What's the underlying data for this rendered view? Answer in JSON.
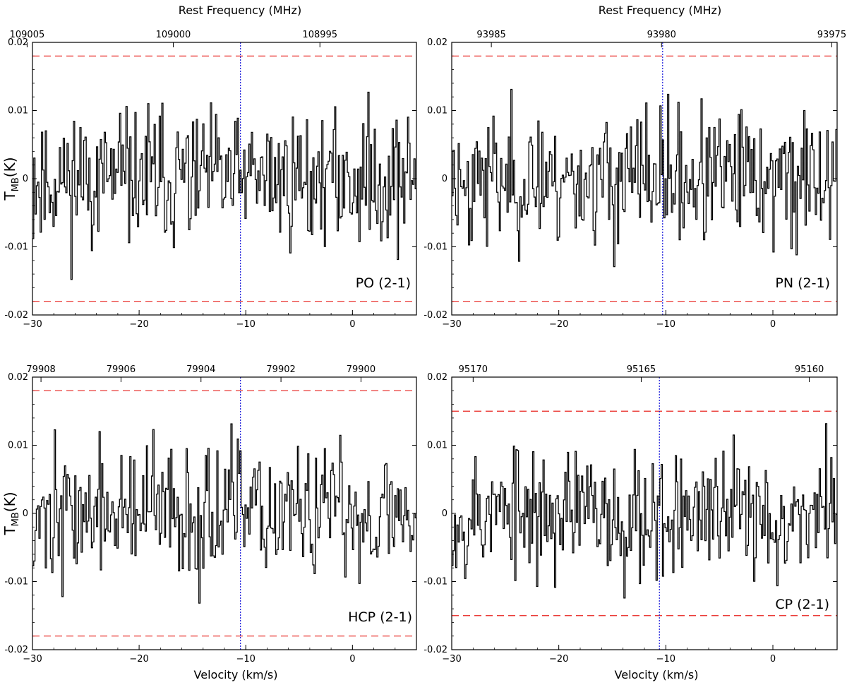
{
  "figure": {
    "xlabel": "Velocity (km/s)",
    "ylabel_main": "T",
    "ylabel_sub": "MB",
    "ylabel_unit": "(K)",
    "top_axis_label": "Rest Frequency (MHz)"
  },
  "colors": {
    "spectrum": "#000000",
    "noise_level": "#e8201c",
    "vlsr_marker": "#1a1adb",
    "frame": "#000000"
  },
  "chart_data": [
    {
      "type": "line",
      "label": "PO (2-1)",
      "xlim": [
        -30,
        6
      ],
      "ylim": [
        -0.02,
        0.02
      ],
      "yticks": [
        -0.02,
        -0.01,
        0,
        0.01,
        0.02
      ],
      "ytick_labels": [
        "-0.02",
        "-0.01",
        "0",
        "0.01",
        "0.02"
      ],
      "xticks": [
        -30,
        -20,
        -10,
        0
      ],
      "xtick_labels": [
        "−30",
        "−20",
        "−10",
        "0"
      ],
      "top_axis_label": "Rest Frequency (MHz)",
      "top_ticks": [
        {
          "v": -30.5,
          "label": "109005"
        },
        {
          "v": -16.8,
          "label": "109000"
        },
        {
          "v": -3.05,
          "label": "108995"
        }
      ],
      "noise_level": 0.018,
      "vlsr": -10.5,
      "seed": 11
    },
    {
      "type": "line",
      "label": "PN (2-1)",
      "xlim": [
        -30,
        6
      ],
      "ylim": [
        -0.02,
        0.02
      ],
      "yticks": [
        -0.02,
        -0.01,
        0,
        0.01,
        0.02
      ],
      "ytick_labels": [
        "-0.02",
        "-0.01",
        "0",
        "0.01",
        "0.02"
      ],
      "xticks": [
        -30,
        -20,
        -10,
        0
      ],
      "xtick_labels": [
        "−30",
        "−20",
        "−10",
        "0"
      ],
      "top_axis_label": "Rest Frequency (MHz)",
      "top_ticks": [
        {
          "v": -26.3,
          "label": "93985"
        },
        {
          "v": -10.4,
          "label": "93980"
        },
        {
          "v": 5.5,
          "label": "93975"
        }
      ],
      "noise_level": 0.018,
      "vlsr": -10.3,
      "seed": 23
    },
    {
      "type": "line",
      "label": "HCP (2-1)",
      "xlim": [
        -30,
        6
      ],
      "ylim": [
        -0.02,
        0.02
      ],
      "yticks": [
        -0.02,
        -0.01,
        0,
        0.01,
        0.02
      ],
      "ytick_labels": [
        "-0.02",
        "-0.01",
        "0",
        "0.01",
        "0.02"
      ],
      "xticks": [
        -30,
        -20,
        -10,
        0
      ],
      "xtick_labels": [
        "−30",
        "−20",
        "−10",
        "0"
      ],
      "top_axis_label": "",
      "top_ticks": [
        {
          "v": -29.2,
          "label": "79908"
        },
        {
          "v": -21.7,
          "label": "79906"
        },
        {
          "v": -14.2,
          "label": "79904"
        },
        {
          "v": -6.7,
          "label": "79902"
        },
        {
          "v": 0.8,
          "label": "79900"
        }
      ],
      "noise_level": 0.018,
      "vlsr": -10.5,
      "seed": 37
    },
    {
      "type": "line",
      "label": "CP (2-1)",
      "xlim": [
        -30,
        6
      ],
      "ylim": [
        -0.02,
        0.02
      ],
      "yticks": [
        -0.02,
        -0.01,
        0,
        0.01,
        0.02
      ],
      "ytick_labels": [
        "-0.02",
        "-0.01",
        "0",
        "0.01",
        "0.02"
      ],
      "xticks": [
        -30,
        -20,
        -10,
        0
      ],
      "xtick_labels": [
        "−30",
        "−20",
        "−10",
        "0"
      ],
      "top_axis_label": "",
      "top_ticks": [
        {
          "v": -28.0,
          "label": "95170"
        },
        {
          "v": -12.3,
          "label": "95165"
        },
        {
          "v": 3.4,
          "label": "95160"
        }
      ],
      "noise_level": 0.015,
      "vlsr": -10.6,
      "seed": 53
    }
  ]
}
